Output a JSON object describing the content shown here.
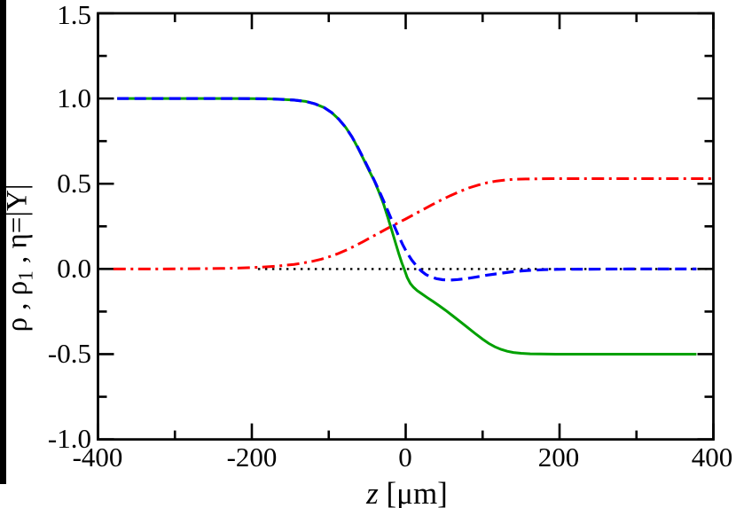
{
  "figure": {
    "background": "#ffffff",
    "artifact_strip_color": "#000000"
  },
  "chart_data": {
    "type": "line",
    "title": "",
    "xlabel": "z [μm]",
    "ylabel": "ρ , ρ1 , η=|Y|",
    "xlabel_parts": {
      "var": "z",
      "rest": " [μm]"
    },
    "ylabel_parts": {
      "pre": "ρ , ρ",
      "sub": "1",
      "post": " , η=|Y|"
    },
    "xlim": [
      -400,
      400
    ],
    "ylim": [
      -1.0,
      1.5
    ],
    "grid": false,
    "legend": "none",
    "x_tick_labels": [
      "-400",
      "-200",
      "0",
      "200",
      "400"
    ],
    "y_tick_labels": [
      "1.5",
      "1.0",
      "0.5",
      "0.0",
      "-0.5",
      "-1.0"
    ],
    "x_major_ticks": [
      -400,
      -200,
      0,
      200,
      400
    ],
    "x_minor_ticks": [
      -300,
      -100,
      100,
      300
    ],
    "y_major_ticks": [
      1.5,
      1.0,
      0.5,
      0.0,
      -0.5,
      -1.0
    ],
    "y_minor_ticks": [
      1.25,
      0.75,
      0.25,
      -0.25,
      -0.75
    ],
    "series": [
      {
        "name": "zero-line",
        "label": "zero reference line",
        "style": "dotted",
        "color": "#000000",
        "points": [
          [
            -192,
            0
          ],
          [
            400,
            0
          ]
        ]
      },
      {
        "name": "eta",
        "label": "η=|Y|",
        "style": "dashdot",
        "color": "#ff0000",
        "points": [
          [
            -380,
            0
          ],
          [
            -330,
            0
          ],
          [
            -295,
            0.001
          ],
          [
            -265,
            0.002
          ],
          [
            -240,
            0.003
          ],
          [
            -218,
            0.005
          ],
          [
            -200,
            0.008
          ],
          [
            -184,
            0.012
          ],
          [
            -170,
            0.016
          ],
          [
            -157,
            0.021
          ],
          [
            -145,
            0.027
          ],
          [
            -133,
            0.035
          ],
          [
            -121,
            0.045
          ],
          [
            -110,
            0.057
          ],
          [
            -99,
            0.072
          ],
          [
            -88,
            0.09
          ],
          [
            -77,
            0.111
          ],
          [
            -66,
            0.135
          ],
          [
            -55,
            0.161
          ],
          [
            -44,
            0.188
          ],
          [
            -33,
            0.215
          ],
          [
            -22,
            0.242
          ],
          [
            -11,
            0.268
          ],
          [
            0,
            0.293
          ],
          [
            11,
            0.32
          ],
          [
            22,
            0.347
          ],
          [
            34,
            0.376
          ],
          [
            46,
            0.404
          ],
          [
            58,
            0.43
          ],
          [
            70,
            0.454
          ],
          [
            82,
            0.475
          ],
          [
            94,
            0.492
          ],
          [
            106,
            0.506
          ],
          [
            118,
            0.516
          ],
          [
            130,
            0.522
          ],
          [
            142,
            0.526
          ],
          [
            156,
            0.528
          ],
          [
            172,
            0.529
          ],
          [
            190,
            0.53
          ],
          [
            230,
            0.53
          ],
          [
            290,
            0.53
          ],
          [
            350,
            0.53
          ],
          [
            400,
            0.53
          ]
        ]
      },
      {
        "name": "rho",
        "label": "ρ",
        "style": "solid",
        "color": "#00a000",
        "points": [
          [
            -375,
            1
          ],
          [
            -320,
            1
          ],
          [
            -270,
            1
          ],
          [
            -230,
            1
          ],
          [
            -200,
            0.999
          ],
          [
            -178,
            0.998
          ],
          [
            -160,
            0.995
          ],
          [
            -145,
            0.991
          ],
          [
            -130,
            0.983
          ],
          [
            -118,
            0.969
          ],
          [
            -106,
            0.947
          ],
          [
            -96,
            0.917
          ],
          [
            -87,
            0.879
          ],
          [
            -78,
            0.831
          ],
          [
            -70,
            0.776
          ],
          [
            -62,
            0.71
          ],
          [
            -54,
            0.636
          ],
          [
            -47,
            0.572
          ],
          [
            -41,
            0.52
          ],
          [
            -35,
            0.455
          ],
          [
            -29,
            0.385
          ],
          [
            -23,
            0.3
          ],
          [
            -18,
            0.225
          ],
          [
            -13,
            0.15
          ],
          [
            -9,
            0.09
          ],
          [
            -5,
            0.035
          ],
          [
            -2,
            0
          ],
          [
            2,
            -0.05
          ],
          [
            6,
            -0.085
          ],
          [
            10,
            -0.107
          ],
          [
            15,
            -0.127
          ],
          [
            20,
            -0.143
          ],
          [
            28,
            -0.168
          ],
          [
            36,
            -0.192
          ],
          [
            44,
            -0.217
          ],
          [
            52,
            -0.243
          ],
          [
            60,
            -0.271
          ],
          [
            70,
            -0.306
          ],
          [
            80,
            -0.342
          ],
          [
            90,
            -0.378
          ],
          [
            100,
            -0.412
          ],
          [
            108,
            -0.437
          ],
          [
            116,
            -0.457
          ],
          [
            124,
            -0.472
          ],
          [
            132,
            -0.483
          ],
          [
            140,
            -0.49
          ],
          [
            150,
            -0.495
          ],
          [
            162,
            -0.498
          ],
          [
            175,
            -0.499
          ],
          [
            195,
            -0.5
          ],
          [
            240,
            -0.5
          ],
          [
            310,
            -0.5
          ],
          [
            378,
            -0.5
          ]
        ]
      },
      {
        "name": "rho1",
        "label": "ρ1",
        "style": "dashed",
        "color": "#0000ff",
        "points": [
          [
            -375,
            1
          ],
          [
            -320,
            1
          ],
          [
            -270,
            1
          ],
          [
            -230,
            1
          ],
          [
            -200,
            0.999
          ],
          [
            -178,
            0.998
          ],
          [
            -160,
            0.995
          ],
          [
            -145,
            0.991
          ],
          [
            -130,
            0.983
          ],
          [
            -118,
            0.969
          ],
          [
            -106,
            0.947
          ],
          [
            -96,
            0.917
          ],
          [
            -87,
            0.879
          ],
          [
            -78,
            0.831
          ],
          [
            -70,
            0.776
          ],
          [
            -62,
            0.712
          ],
          [
            -54,
            0.64
          ],
          [
            -47,
            0.578
          ],
          [
            -40,
            0.512
          ],
          [
            -34,
            0.453
          ],
          [
            -28,
            0.392
          ],
          [
            -22,
            0.328
          ],
          [
            -16,
            0.264
          ],
          [
            -10,
            0.202
          ],
          [
            -4,
            0.144
          ],
          [
            2,
            0.093
          ],
          [
            8,
            0.052
          ],
          [
            14,
            0.018
          ],
          [
            20,
            -0.011
          ],
          [
            26,
            -0.032
          ],
          [
            32,
            -0.046
          ],
          [
            40,
            -0.057
          ],
          [
            48,
            -0.063
          ],
          [
            58,
            -0.065
          ],
          [
            68,
            -0.062
          ],
          [
            80,
            -0.056
          ],
          [
            92,
            -0.047
          ],
          [
            106,
            -0.036
          ],
          [
            122,
            -0.026
          ],
          [
            140,
            -0.016
          ],
          [
            158,
            -0.009
          ],
          [
            180,
            -0.004
          ],
          [
            205,
            -0.002
          ],
          [
            240,
            -0.001
          ],
          [
            290,
            0
          ],
          [
            378,
            0
          ]
        ]
      }
    ]
  }
}
